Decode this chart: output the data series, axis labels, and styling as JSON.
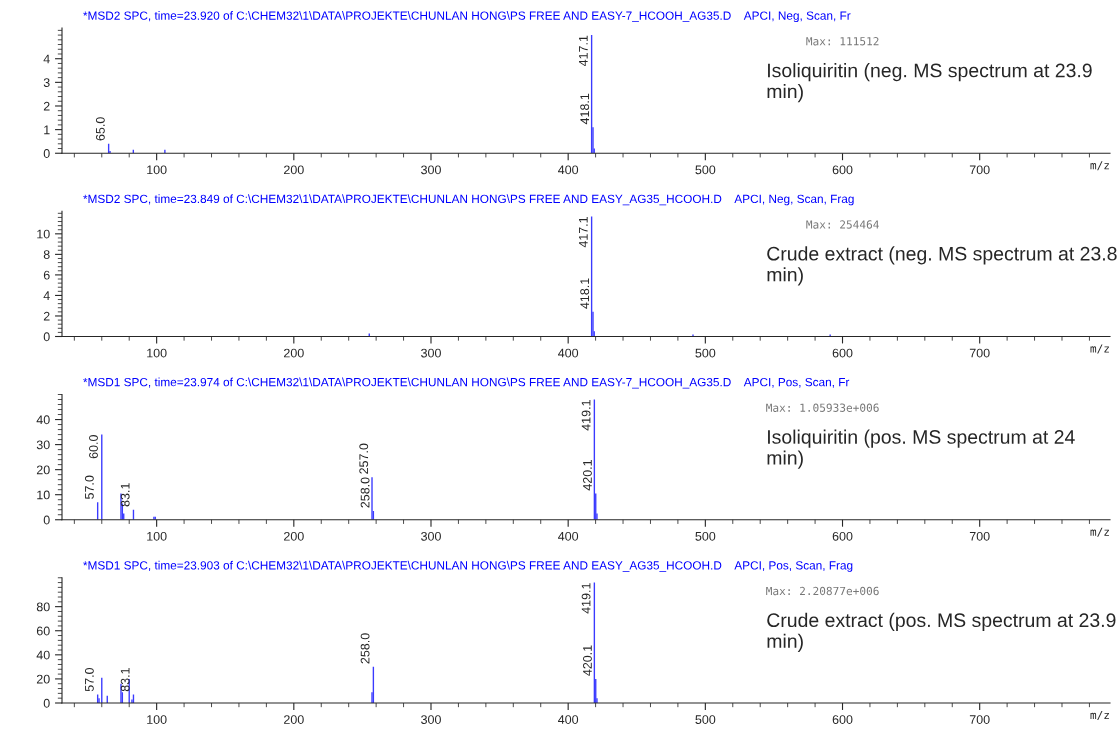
{
  "chart_data": [
    {
      "type": "bar",
      "title": "*MSD2 SPC, time=23.920 of C:\\CHEM32\\1\\DATA\\PROJEKTE\\CHUNLAN HONG\\PS FREE AND EASY-7_HCOOH_AG35.D    APCI, Neg, Scan, Fr",
      "xlabel": "m/z",
      "x": [
        65.0,
        66,
        83,
        106,
        417.1,
        418.1,
        419
      ],
      "values": [
        0.4,
        0.1,
        0.15,
        0.15,
        5.0,
        1.1,
        0.2
      ],
      "color": "#3a3aff",
      "xlim": [
        31,
        795
      ],
      "xticks": [
        100,
        200,
        300,
        400,
        500,
        600,
        700
      ],
      "ylim": [
        0,
        5.3
      ],
      "yticks": [
        0,
        1,
        2,
        3,
        4
      ],
      "grid": false,
      "annotations": [
        "Max: 111512",
        "Isoliquiritin (neg. MS spectrum at 23.9 min)",
        {
          "text": "65.0",
          "x": 65.0,
          "y": 0.4
        },
        {
          "text": "417.1",
          "x": 417.1,
          "y": 5.0
        },
        {
          "text": "418.1",
          "x": 418.1,
          "y": 1.1
        }
      ]
    },
    {
      "type": "bar",
      "title": "*MSD2 SPC, time=23.849 of C:\\CHEM32\\1\\DATA\\PROJEKTE\\CHUNLAN HONG\\PS FREE AND EASY_AG35_HCOOH.D    APCI, Neg, Scan, Frag",
      "xlabel": "m/z",
      "x": [
        255,
        417.1,
        418.1,
        419,
        491,
        591
      ],
      "values": [
        0.3,
        11.7,
        2.4,
        0.5,
        0.2,
        0.2
      ],
      "color": "#3a3aff",
      "xlim": [
        31,
        795
      ],
      "xticks": [
        100,
        200,
        300,
        400,
        500,
        600,
        700
      ],
      "ylim": [
        0,
        12.2
      ],
      "yticks": [
        0,
        2,
        4,
        6,
        8,
        10
      ],
      "grid": false,
      "annotations": [
        "Max: 254464",
        "Crude extract (neg. MS spectrum at 23.8 min)",
        {
          "text": "417.1",
          "x": 417.1,
          "y": 11.7
        },
        {
          "text": "418.1",
          "x": 418.1,
          "y": 2.4
        }
      ]
    },
    {
      "type": "bar",
      "title": "*MSD1 SPC, time=23.974 of C:\\CHEM32\\1\\DATA\\PROJEKTE\\CHUNLAN HONG\\PS FREE AND EASY-7_HCOOH_AG35.D    APCI, Pos, Scan, Fr",
      "xlabel": "m/z",
      "x": [
        57.0,
        60.0,
        74,
        75,
        76,
        83.1,
        98,
        99,
        257.0,
        258.0,
        419.1,
        420.1,
        421
      ],
      "values": [
        7,
        34,
        10.5,
        6.5,
        2.5,
        4,
        1.2,
        1.2,
        17,
        3.5,
        48,
        10.5,
        2.5
      ],
      "color": "#3a3aff",
      "xlim": [
        31,
        795
      ],
      "xticks": [
        100,
        200,
        300,
        400,
        500,
        600,
        700
      ],
      "ylim": [
        0,
        50
      ],
      "yticks": [
        0,
        10,
        20,
        30,
        40
      ],
      "grid": false,
      "annotations": [
        "Max: 1.05933e+006",
        "Isoliquiritin (pos. MS spectrum at 24 min)",
        {
          "text": "57.0",
          "x": 57.0,
          "y": 7
        },
        {
          "text": "60.0",
          "x": 60.0,
          "y": 34
        },
        {
          "text": "83.1",
          "x": 83.1,
          "y": 4
        },
        {
          "text": "257.0",
          "x": 257.0,
          "y": 17
        },
        {
          "text": "258.0",
          "x": 258.0,
          "y": 3.5
        },
        {
          "text": "419.1",
          "x": 419.1,
          "y": 48
        },
        {
          "text": "420.1",
          "x": 420.1,
          "y": 10.5
        }
      ]
    },
    {
      "type": "bar",
      "title": "*MSD1 SPC, time=23.903 of C:\\CHEM32\\1\\DATA\\PROJEKTE\\CHUNLAN HONG\\PS FREE AND EASY_AG35_HCOOH.D    APCI, Pos, Scan, Frag",
      "xlabel": "m/z",
      "x": [
        57.0,
        58,
        60,
        64,
        74,
        75,
        80,
        82,
        83.1,
        257,
        258.0,
        419.1,
        420.1,
        421
      ],
      "values": [
        7,
        4,
        21,
        6,
        16,
        9,
        20,
        3,
        7,
        9,
        30,
        100,
        20,
        4
      ],
      "color": "#3a3aff",
      "xlim": [
        31,
        795
      ],
      "xticks": [
        100,
        200,
        300,
        400,
        500,
        600,
        700
      ],
      "ylim": [
        0,
        104
      ],
      "yticks": [
        0,
        20,
        40,
        60,
        80
      ],
      "grid": false,
      "annotations": [
        "Max: 2.20877e+006",
        "Crude extract (pos. MS spectrum at 23.9 min)",
        {
          "text": "57.0",
          "x": 57.0,
          "y": 7
        },
        {
          "text": "83.1",
          "x": 83.1,
          "y": 7
        },
        {
          "text": "258.0",
          "x": 258.0,
          "y": 30
        },
        {
          "text": "419.1",
          "x": 419.1,
          "y": 100
        },
        {
          "text": "420.1",
          "x": 420.1,
          "y": 20
        }
      ]
    }
  ]
}
